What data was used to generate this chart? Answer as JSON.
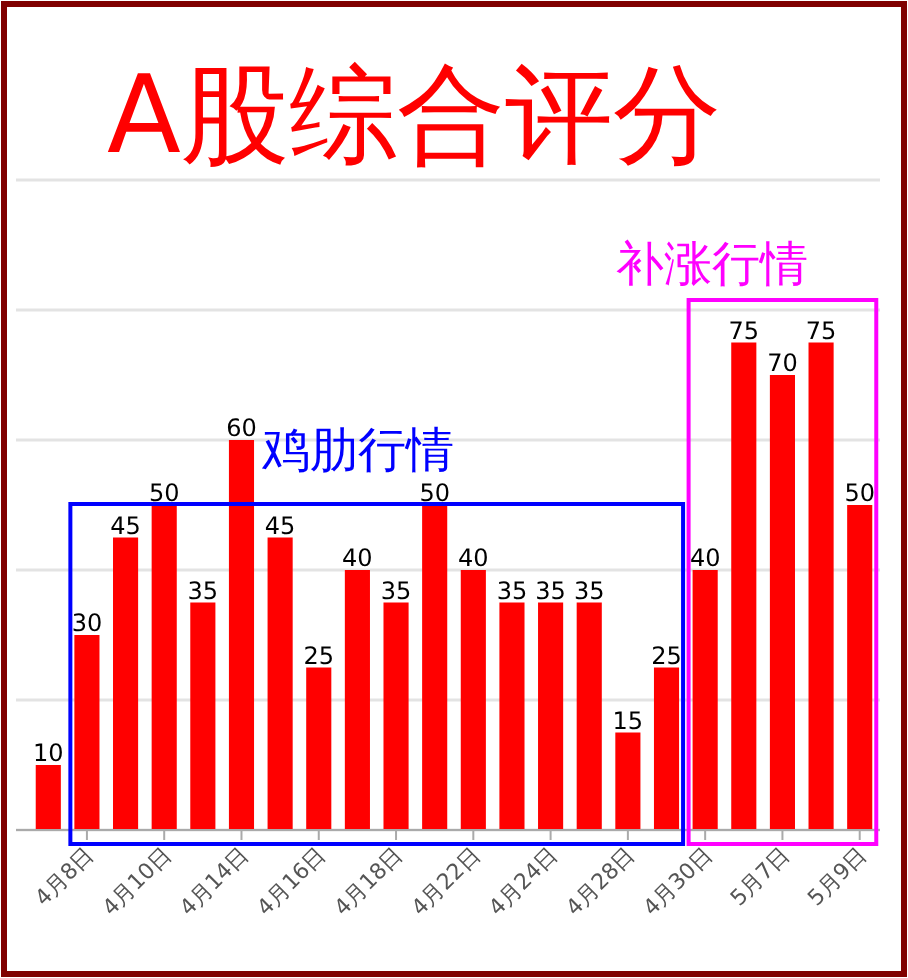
{
  "chart_data": {
    "type": "bar",
    "title": "A股综合评分",
    "categories": [
      null,
      "4月8日",
      null,
      "4月10日",
      null,
      "4月14日",
      null,
      "4月16日",
      null,
      "4月18日",
      null,
      "4月22日",
      null,
      "4月24日",
      null,
      "4月28日",
      null,
      "4月30日",
      null,
      "5月7日",
      null,
      "5月9日"
    ],
    "values": [
      10,
      30,
      45,
      50,
      35,
      60,
      45,
      25,
      40,
      35,
      50,
      40,
      35,
      35,
      35,
      15,
      25,
      40,
      75,
      70,
      75,
      50
    ],
    "color": "#ff0000",
    "ylim": [
      0,
      100
    ],
    "yticks": [
      {
        "value": 0,
        "label": null
      },
      {
        "value": 20,
        "label": null
      },
      {
        "value": 40,
        "label": null
      },
      {
        "value": 60,
        "label": null
      },
      {
        "value": 80,
        "label": null
      },
      {
        "value": 100,
        "label": null
      }
    ],
    "tick_labels": "x",
    "grid": "y",
    "data_labels": true,
    "annotations": [
      "鸡肋行情",
      "补涨行情"
    ]
  }
}
